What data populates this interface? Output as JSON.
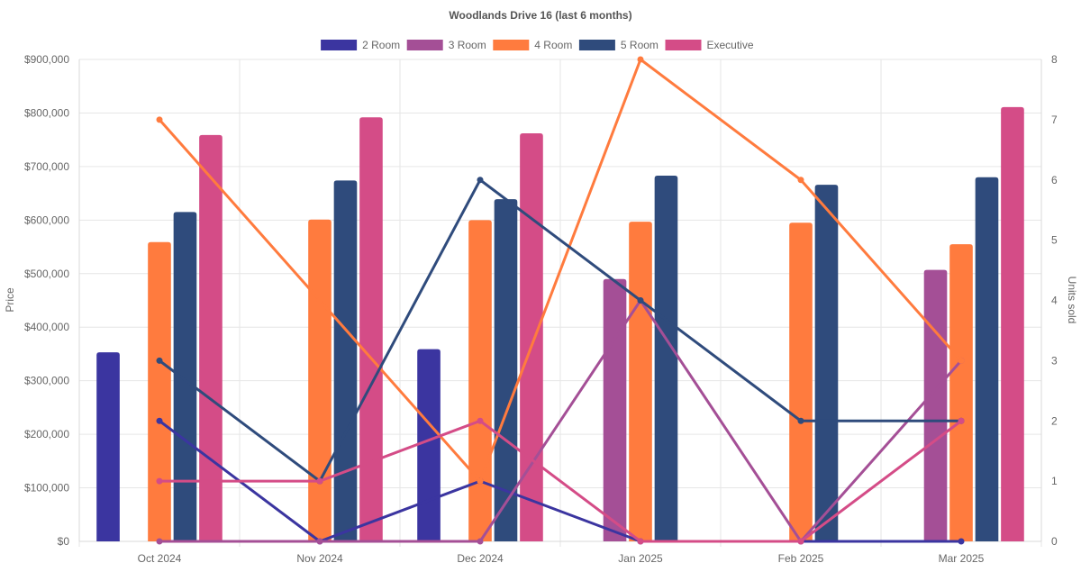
{
  "chart_data": {
    "type": "bar",
    "title": "Woodlands Drive 16 (last 6 months)",
    "categories": [
      "Oct 2024",
      "Nov 2024",
      "Dec 2024",
      "Jan 2025",
      "Feb 2025",
      "Mar 2025"
    ],
    "ylabel": "Price",
    "y2label": "Units sold",
    "ylim": [
      0,
      900000
    ],
    "y2lim": [
      0,
      8
    ],
    "yticks": [
      "$0",
      "$100,000",
      "$200,000",
      "$300,000",
      "$400,000",
      "$500,000",
      "$600,000",
      "$700,000",
      "$800,000",
      "$900,000"
    ],
    "y2ticks": [
      "0",
      "1",
      "2",
      "3",
      "4",
      "5",
      "6",
      "7",
      "8"
    ],
    "grid": true,
    "legend_position": "top-center",
    "series": [
      {
        "name": "2 Room",
        "color": "#3b35a0",
        "price": [
          353000,
          0,
          359000,
          0,
          0,
          0
        ],
        "units": [
          2,
          0,
          1,
          0,
          0,
          0
        ]
      },
      {
        "name": "3 Room",
        "color": "#a44f96",
        "price": [
          0,
          0,
          0,
          490000,
          0,
          507000
        ],
        "units": [
          0,
          0,
          0,
          4,
          0,
          3
        ]
      },
      {
        "name": "4 Room",
        "color": "#ff7b3e",
        "price": [
          559000,
          601000,
          600000,
          597000,
          595000,
          555000
        ],
        "units": [
          7,
          4,
          1,
          8,
          6,
          3
        ]
      },
      {
        "name": "5 Room",
        "color": "#2f4b7c",
        "price": [
          615000,
          674000,
          639000,
          683000,
          666000,
          680000
        ],
        "units": [
          3,
          1,
          6,
          4,
          2,
          2
        ]
      },
      {
        "name": "Executive",
        "color": "#d44c87",
        "price": [
          759000,
          792000,
          762000,
          0,
          0,
          811000
        ],
        "units": [
          1,
          1,
          2,
          0,
          0,
          2
        ]
      }
    ]
  }
}
